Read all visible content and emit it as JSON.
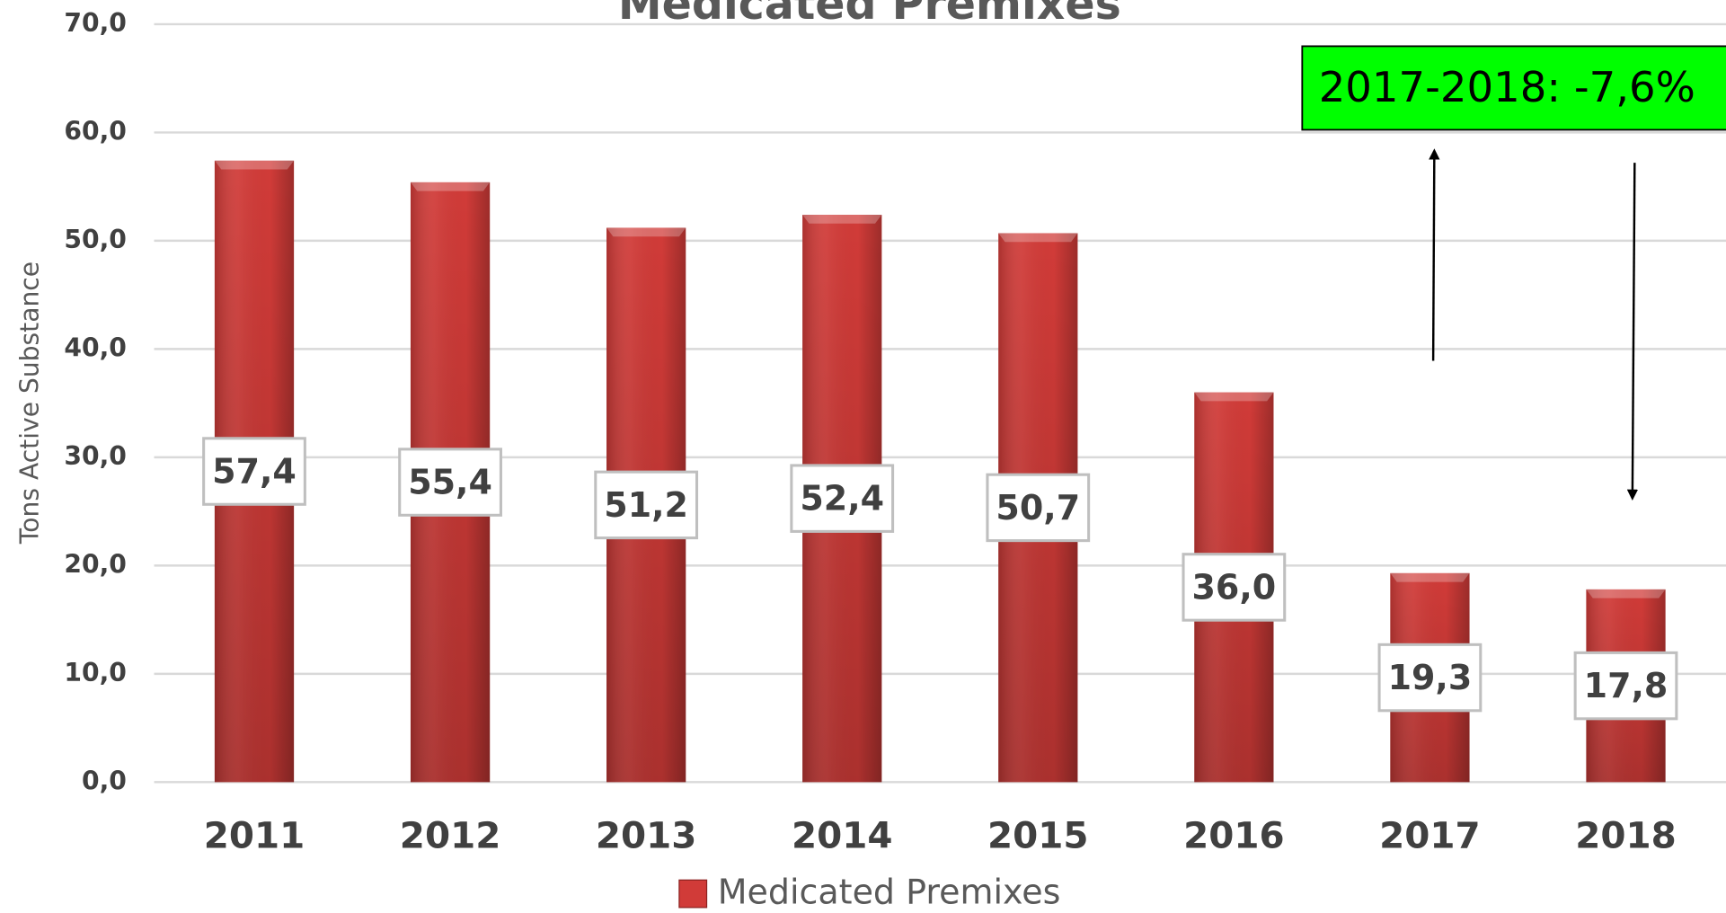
{
  "chart_data": {
    "type": "bar",
    "title": "Medicated Premixes",
    "y_label": "Tons Active Substance",
    "annotation": "2017-2018: -7,6%",
    "categories": [
      "2011",
      "2012",
      "2013",
      "2014",
      "2015",
      "2016",
      "2017",
      "2018"
    ],
    "series": [
      {
        "name": "Medicated Premixes",
        "color": "#d13b38",
        "values": [
          57.4,
          55.4,
          51.2,
          52.4,
          50.7,
          36.0,
          19.3,
          17.8
        ],
        "value_labels": [
          "57,4",
          "55,4",
          "51,2",
          "52,4",
          "50,7",
          "36,0",
          "19,3",
          "17,8"
        ]
      }
    ],
    "ylim": [
      0,
      70
    ],
    "yticks": [
      {
        "value": 0,
        "label": "0,0"
      },
      {
        "value": 10,
        "label": "10,0"
      },
      {
        "value": 20,
        "label": "20,0"
      },
      {
        "value": 30,
        "label": "30,0"
      },
      {
        "value": 40,
        "label": "40,0"
      },
      {
        "value": 50,
        "label": "50,0"
      },
      {
        "value": 60,
        "label": "60,0"
      },
      {
        "value": 70,
        "label": "70,0"
      }
    ],
    "grid": true,
    "legend": "bottom"
  }
}
